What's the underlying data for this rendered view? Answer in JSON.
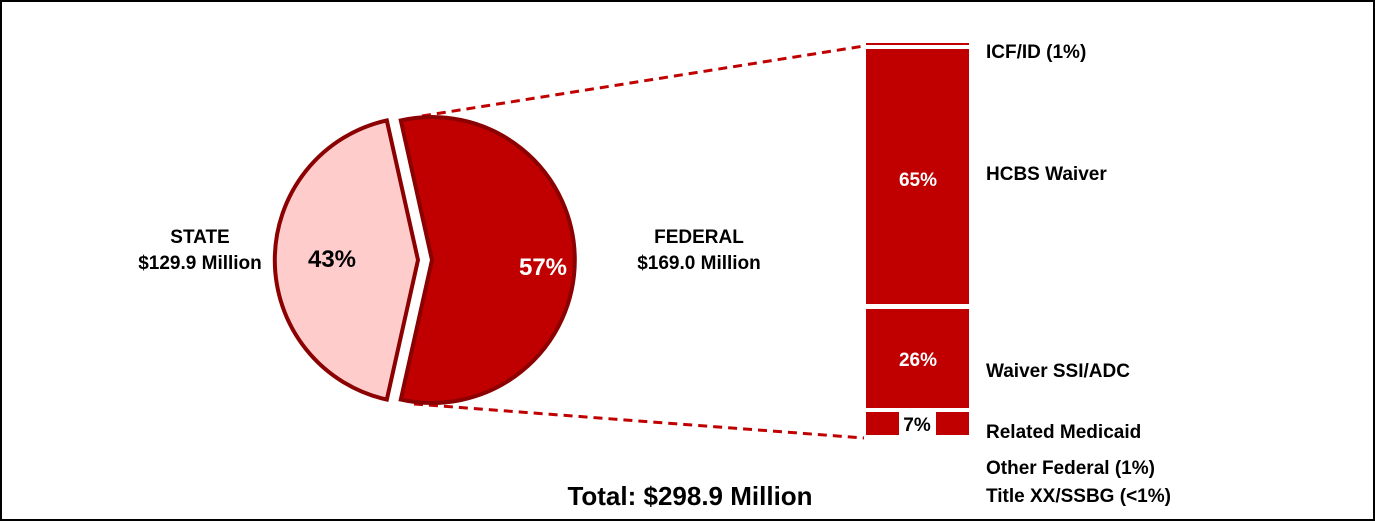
{
  "chart_data": {
    "type": "pie",
    "slices": [
      {
        "name": "STATE",
        "amount": "$129.9 Million",
        "percent": 43,
        "percent_label": "43%",
        "color": "#ffcccc",
        "edge": "#8b0000"
      },
      {
        "name": "FEDERAL",
        "amount": "$169.0 Million",
        "percent": 57,
        "percent_label": "57%",
        "color": "#c00000",
        "edge": "#8b0000"
      }
    ],
    "total_label": "Total: $298.9 Million",
    "breakdown": {
      "of": "FEDERAL",
      "type": "stacked-bar",
      "color": "#c00000",
      "segments": [
        {
          "label": "ICF/ID (1%)",
          "percent": 1,
          "value_label": ""
        },
        {
          "label": "HCBS Waiver",
          "percent": 65,
          "value_label": "65%"
        },
        {
          "label": "Waiver SSI/ADC",
          "percent": 26,
          "value_label": "26%"
        },
        {
          "label": "Related Medicaid",
          "percent": 7,
          "value_label": "7%"
        },
        {
          "label": "Other Federal (1%)",
          "percent": 1,
          "value_label": ""
        },
        {
          "label": "Title XX/SSBG (<1%)",
          "percent": 0.5,
          "value_label": ""
        }
      ]
    }
  }
}
